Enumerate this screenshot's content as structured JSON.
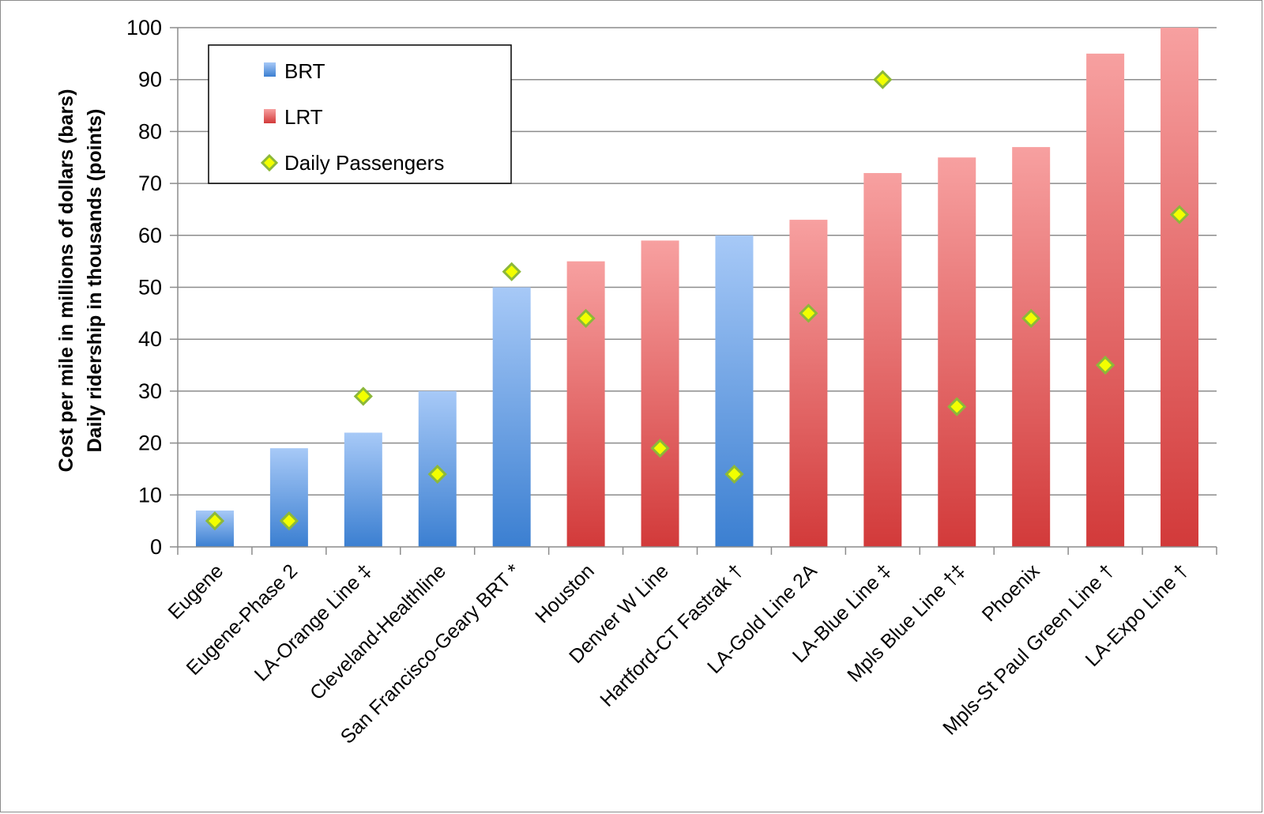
{
  "chart_data": {
    "type": "bar",
    "title": "",
    "ylabel_lines": [
      "Cost per mile in millions of dollars (bars)",
      "Daily ridership in thousands (points)"
    ],
    "xlabel": "",
    "ylim": [
      0,
      100
    ],
    "ytick_step": 10,
    "grid": true,
    "legend_position": "top-left",
    "categories": [
      "Eugene",
      "Eugene-Phase 2",
      "LA-Orange Line ‡",
      "Cleveland-Healthline",
      "San Francisco-Geary BRT *",
      "Houston",
      "Denver W Line",
      "Hartford-CT Fastrak †",
      "LA-Gold Line 2A",
      "LA-Blue Line ‡",
      "Mpls Blue Line †‡",
      "Phoenix",
      "Mpls-St Paul Green Line †",
      "LA-Expo Line †"
    ],
    "bar_types": [
      "BRT",
      "BRT",
      "BRT",
      "BRT",
      "BRT",
      "LRT",
      "LRT",
      "BRT",
      "LRT",
      "LRT",
      "LRT",
      "LRT",
      "LRT",
      "LRT"
    ],
    "series": [
      {
        "name": "Cost per mile",
        "kind": "bar",
        "values": [
          7,
          19,
          22,
          30,
          50,
          55,
          59,
          60,
          63,
          72,
          75,
          77,
          95,
          100
        ]
      },
      {
        "name": "Daily Passengers",
        "kind": "scatter",
        "values": [
          5,
          5,
          29,
          14,
          53,
          44,
          19,
          14,
          45,
          90,
          27,
          44,
          35,
          64
        ]
      }
    ],
    "legend": [
      {
        "key": "BRT",
        "label": "BRT",
        "marker": "bar"
      },
      {
        "key": "LRT",
        "label": "LRT",
        "marker": "bar"
      },
      {
        "key": "points",
        "label": "Daily Passengers",
        "marker": "diamond"
      }
    ]
  },
  "colors": {
    "brt_top": "#a7c9f7",
    "brt_bottom": "#3b7fd1",
    "lrt_top": "#f7a0a0",
    "lrt_bottom": "#d23a3a",
    "point_fill": "#f2ff00",
    "point_stroke": "#8cb83a",
    "grid": "#8c8c8c"
  }
}
